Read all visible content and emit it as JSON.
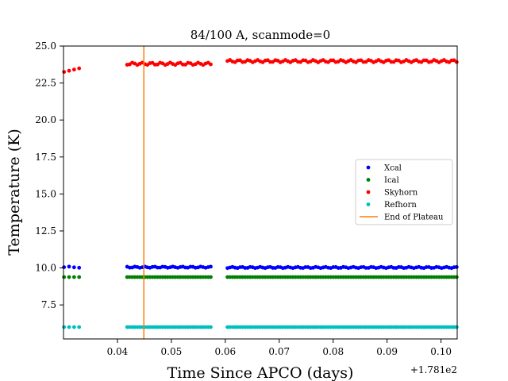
{
  "chart_data": {
    "type": "scatter",
    "title": "84/100 A, scanmode=0",
    "xlabel": "Time Since APCO (days)",
    "ylabel": "Temperature (K)",
    "x_offset_label": "+1.781e2",
    "xlim": [
      0.03,
      0.103
    ],
    "ylim": [
      5.2,
      25.0
    ],
    "x_ticks": [
      0.04,
      0.05,
      0.06,
      0.07,
      0.08,
      0.09,
      0.1
    ],
    "x_tick_labels": [
      "0.04",
      "0.05",
      "0.06",
      "0.07",
      "0.08",
      "0.09",
      "0.10"
    ],
    "y_ticks": [
      7.5,
      10.0,
      12.5,
      15.0,
      17.5,
      20.0,
      22.5,
      25.0
    ],
    "y_tick_labels": [
      "7.5",
      "10.0",
      "12.5",
      "15.0",
      "17.5",
      "20.0",
      "22.5",
      "25.0"
    ],
    "grid": false,
    "legend_position": "center-right",
    "segments": [
      [
        0.0301,
        0.0329,
        4
      ],
      [
        0.0418,
        0.0573,
        34
      ],
      [
        0.0604,
        0.1029,
        92
      ]
    ],
    "series": [
      {
        "name": "Xcal",
        "color": "#0000ff",
        "marker": "dot",
        "levels": [
          10.05,
          10.05,
          10.03
        ],
        "noise": 0.04
      },
      {
        "name": "Ical",
        "color": "#008000",
        "marker": "dot",
        "levels": [
          9.38,
          9.38,
          9.38
        ],
        "noise": 0.0
      },
      {
        "name": "Skyhorn",
        "color": "#ff0000",
        "marker": "dot",
        "levels": [
          23.4,
          23.8,
          23.98
        ],
        "noise": 0.08
      },
      {
        "name": "Refhorn",
        "color": "#00bfbf",
        "marker": "dot",
        "levels": [
          6.0,
          6.0,
          6.0
        ],
        "noise": 0.0
      }
    ],
    "vlines": [
      {
        "name": "End of Plateau",
        "color": "#ff7f0e",
        "x": 0.0449
      }
    ]
  }
}
